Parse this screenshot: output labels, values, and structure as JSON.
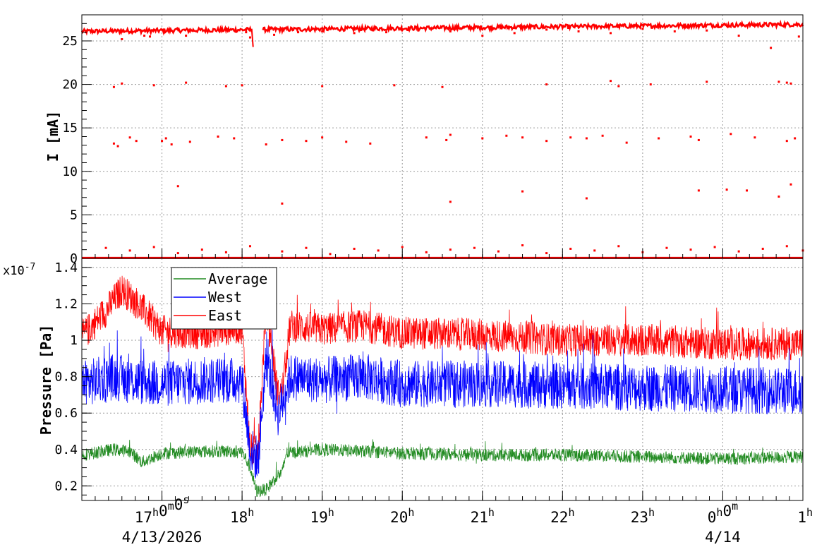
{
  "chart_data": [
    {
      "type": "scatter",
      "panel": "top",
      "ylabel": "I [mA]",
      "ylim": [
        0,
        28
      ],
      "yticks": [
        0,
        5,
        10,
        15,
        20,
        25
      ],
      "grid": true,
      "series": [
        {
          "color": "#ff0000",
          "baseline_band": {
            "x_start": 16.0,
            "x_end": 25.0,
            "y_start": 26.1,
            "y_end": 26.9
          },
          "dip": {
            "x": 18.12,
            "y_min": 24.3
          },
          "points_x": [
            16.05,
            16.12,
            16.5,
            16.78,
            16.85,
            17.3,
            18.05,
            18.1,
            18.4,
            18.7,
            19.0,
            19.4,
            19.8,
            20.2,
            20.6,
            21.0,
            21.4,
            21.8,
            22.2,
            22.6,
            23.0,
            23.4,
            23.8,
            24.2,
            24.6,
            24.95,
            16.4,
            16.45,
            16.6,
            16.68,
            17.0,
            17.05,
            17.12,
            17.35,
            17.7,
            17.9,
            18.3,
            18.5,
            18.8,
            19.0,
            19.3,
            19.6,
            20.3,
            20.55,
            20.6,
            21.0,
            21.3,
            21.5,
            21.8,
            22.1,
            22.3,
            22.5,
            22.8,
            23.2,
            23.6,
            23.7,
            24.1,
            24.4,
            24.8,
            24.9,
            16.4,
            16.5,
            16.9,
            17.3,
            17.8,
            18.0,
            19.0,
            19.9,
            20.5,
            21.8,
            22.6,
            22.7,
            23.1,
            23.8,
            24.7,
            24.8,
            24.85,
            17.2,
            18.5,
            20.6,
            21.5,
            22.3,
            23.7,
            24.05,
            24.3,
            24.7,
            24.85,
            16.3,
            16.6,
            16.9,
            17.2,
            17.5,
            17.8,
            18.1,
            18.5,
            18.8,
            19.1,
            19.4,
            19.7,
            20.0,
            20.3,
            20.6,
            20.9,
            21.2,
            21.5,
            21.8,
            22.1,
            22.4,
            22.7,
            23.0,
            23.3,
            23.6,
            23.9,
            24.2,
            24.5,
            24.8,
            25.0
          ],
          "points_y": [
            26.0,
            26.1,
            25.2,
            25.6,
            25.5,
            25.6,
            26.0,
            25.4,
            25.7,
            26.0,
            26.1,
            25.9,
            26.0,
            26.2,
            26.1,
            25.6,
            25.9,
            26.3,
            26.1,
            25.9,
            26.4,
            26.1,
            26.2,
            25.6,
            24.2,
            25.5,
            13.2,
            12.9,
            13.9,
            13.5,
            13.5,
            13.8,
            13.1,
            13.4,
            14.0,
            13.8,
            13.1,
            13.6,
            13.5,
            13.9,
            13.4,
            13.2,
            13.9,
            13.6,
            14.2,
            13.8,
            14.1,
            13.9,
            13.5,
            13.9,
            13.8,
            14.1,
            13.3,
            13.8,
            14.0,
            13.6,
            14.3,
            13.9,
            13.5,
            13.8,
            19.7,
            20.1,
            19.9,
            20.2,
            19.8,
            19.9,
            19.8,
            19.9,
            19.7,
            20.0,
            20.4,
            19.8,
            20.0,
            20.3,
            20.3,
            20.2,
            20.1,
            8.3,
            6.3,
            6.5,
            7.7,
            6.9,
            7.8,
            7.9,
            7.8,
            7.1,
            8.5,
            1.2,
            0.9,
            1.3,
            0.6,
            1.0,
            0.7,
            1.4,
            0.8,
            1.2,
            0.5,
            1.1,
            0.9,
            1.3,
            0.7,
            1.0,
            1.2,
            0.8,
            1.5,
            0.6,
            1.1,
            0.9,
            1.4,
            0.7,
            1.2,
            1.0,
            1.3,
            0.8,
            1.1,
            1.4,
            0.9
          ]
        }
      ]
    },
    {
      "type": "line",
      "panel": "bottom",
      "ylabel": "Pressure [Pa]",
      "y_exponent": "x10",
      "y_exponent_power": "-7",
      "ylim": [
        0.12,
        1.45
      ],
      "yticks": [
        "0.2",
        "0.4",
        "0.6",
        "0.8",
        "1",
        "1.2",
        "1.4"
      ],
      "grid": true,
      "legend_position": "top-left",
      "series": [
        {
          "name": "Average",
          "color": "#228b22",
          "noise": 0.035,
          "x": [
            16.0,
            16.4,
            16.6,
            16.75,
            17.0,
            17.5,
            18.0,
            18.1,
            18.18,
            18.3,
            18.45,
            18.5,
            18.55,
            19.0,
            19.5,
            20.0,
            21.0,
            22.0,
            23.0,
            24.0,
            25.0
          ],
          "y": [
            0.37,
            0.4,
            0.39,
            0.33,
            0.38,
            0.39,
            0.39,
            0.3,
            0.17,
            0.18,
            0.26,
            0.27,
            0.38,
            0.4,
            0.39,
            0.38,
            0.37,
            0.37,
            0.36,
            0.35,
            0.36
          ]
        },
        {
          "name": "West",
          "color": "#0000ff",
          "noise": 0.13,
          "x": [
            16.0,
            16.4,
            16.6,
            17.0,
            17.5,
            18.0,
            18.1,
            18.2,
            18.3,
            18.45,
            18.5,
            18.6,
            19.0,
            19.5,
            20.0,
            21.0,
            22.0,
            23.0,
            24.0,
            25.0
          ],
          "y": [
            0.76,
            0.8,
            0.78,
            0.76,
            0.78,
            0.78,
            0.4,
            0.34,
            0.9,
            0.6,
            0.66,
            0.8,
            0.78,
            0.8,
            0.76,
            0.76,
            0.75,
            0.74,
            0.73,
            0.72
          ]
        },
        {
          "name": "East",
          "color": "#ff0000",
          "noise": 0.09,
          "x": [
            16.0,
            16.3,
            16.5,
            16.7,
            17.0,
            17.5,
            18.0,
            18.1,
            18.2,
            18.3,
            18.45,
            18.5,
            18.6,
            19.0,
            19.5,
            20.0,
            21.0,
            22.0,
            23.0,
            24.0,
            25.0
          ],
          "y": [
            1.02,
            1.16,
            1.28,
            1.2,
            1.05,
            1.04,
            1.07,
            0.4,
            0.38,
            1.2,
            0.7,
            0.72,
            1.08,
            1.06,
            1.08,
            1.04,
            1.03,
            1.0,
            1.0,
            0.98,
            0.98
          ]
        }
      ]
    }
  ],
  "x_axis": {
    "xlim": [
      16.0,
      25.0
    ],
    "ticks": [
      {
        "x": 17,
        "hour": "17",
        "hour_sup": "h",
        "min": "0",
        "min_sup": "m",
        "sec": "0",
        "sec_sup": "s",
        "date": "4/13/2026"
      },
      {
        "x": 18,
        "hour": "18",
        "hour_sup": "h"
      },
      {
        "x": 19,
        "hour": "19",
        "hour_sup": "h"
      },
      {
        "x": 20,
        "hour": "20",
        "hour_sup": "h"
      },
      {
        "x": 21,
        "hour": "21",
        "hour_sup": "h"
      },
      {
        "x": 22,
        "hour": "22",
        "hour_sup": "h"
      },
      {
        "x": 23,
        "hour": "23",
        "hour_sup": "h"
      },
      {
        "x": 24,
        "hour": "0",
        "hour_sup": "h",
        "min": "0",
        "min_sup": "m",
        "date": "4/14"
      },
      {
        "x": 25,
        "hour": "1",
        "hour_sup": "h"
      }
    ]
  }
}
